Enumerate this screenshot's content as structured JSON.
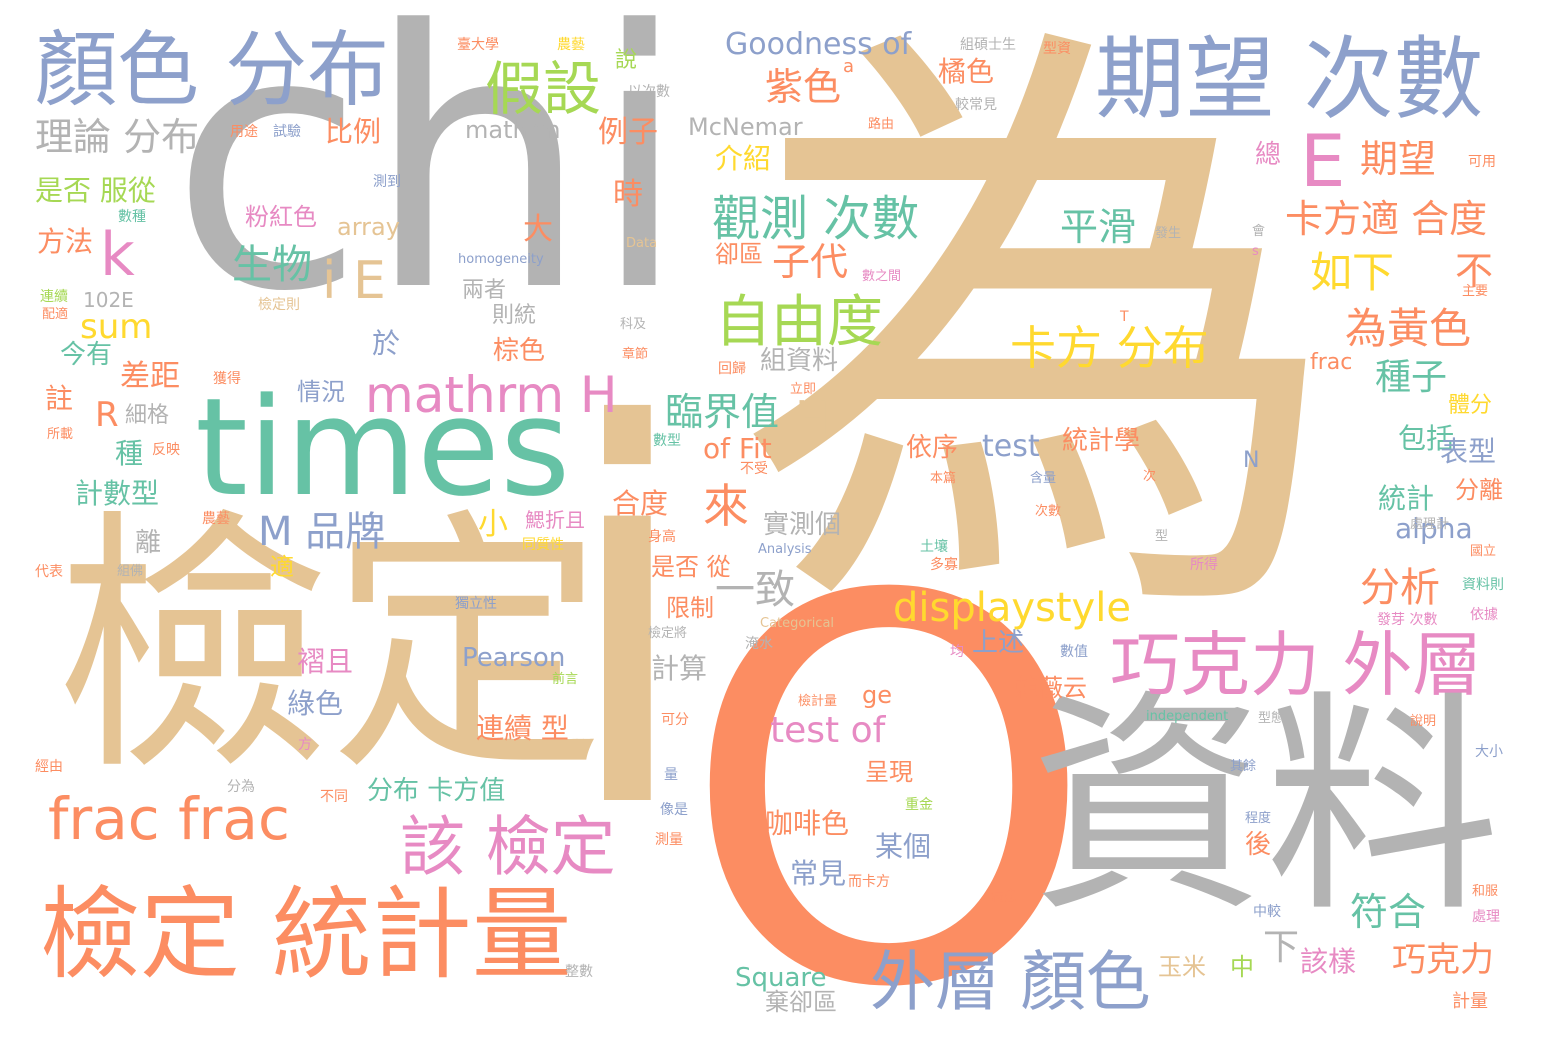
{
  "palette": {
    "gray": "#b3b3b3",
    "tan": "#e5c494",
    "orange": "#fc8d62",
    "green": "#66c2a5",
    "blue": "#8da0cb",
    "pink": "#e78ac3",
    "lime": "#a6d854",
    "yellow": "#ffd92f"
  },
  "words": [
    {
      "text": "chi",
      "color": "gray"
    },
    {
      "text": "為",
      "color": "tan"
    },
    {
      "text": "檢定",
      "color": "tan"
    },
    {
      "text": "i",
      "color": "tan"
    },
    {
      "text": "O",
      "color": "orange"
    },
    {
      "text": "資料",
      "color": "gray"
    },
    {
      "text": "times",
      "color": "green"
    },
    {
      "text": "檢定 統計量",
      "color": "orange"
    },
    {
      "text": "期望 次數",
      "color": "blue"
    },
    {
      "text": "顏色 分布",
      "color": "blue"
    },
    {
      "text": "巧克力 外層",
      "color": "pink"
    },
    {
      "text": "外層 顏色",
      "color": "blue"
    },
    {
      "text": "frac frac",
      "color": "orange"
    },
    {
      "text": "該 檢定",
      "color": "pink"
    },
    {
      "text": "假設",
      "color": "lime"
    },
    {
      "text": "E",
      "color": "pink"
    },
    {
      "text": "自由度",
      "color": "lime"
    },
    {
      "text": "觀測 次數",
      "color": "green"
    },
    {
      "text": "卡方 分布",
      "color": "yellow"
    },
    {
      "text": "mathrm H",
      "color": "pink"
    },
    {
      "text": "displaystyle",
      "color": "yellow"
    },
    {
      "text": "Goodness of",
      "color": "blue"
    },
    {
      "text": "test of",
      "color": "pink"
    },
    {
      "text": "k",
      "color": "pink"
    },
    {
      "text": "i E",
      "color": "tan"
    },
    {
      "text": "H",
      "color": "tan"
    },
    {
      "text": "為黃色",
      "color": "orange"
    },
    {
      "text": "如下",
      "color": "yellow"
    },
    {
      "text": "卡方適 合度",
      "color": "orange"
    },
    {
      "text": "期望",
      "color": "orange"
    },
    {
      "text": "紫色",
      "color": "orange"
    },
    {
      "text": "M 品牌",
      "color": "blue"
    },
    {
      "text": "生物",
      "color": "green"
    },
    {
      "text": "理論 分布",
      "color": "gray"
    },
    {
      "text": "平滑",
      "color": "green"
    },
    {
      "text": "來",
      "color": "orange"
    },
    {
      "text": "臨界值",
      "color": "green"
    },
    {
      "text": "分析",
      "color": "orange"
    },
    {
      "text": "巧克力",
      "color": "orange"
    },
    {
      "text": "符合",
      "color": "green"
    },
    {
      "text": "一致",
      "color": "gray"
    },
    {
      "text": "子代",
      "color": "orange"
    },
    {
      "text": "種子",
      "color": "green"
    },
    {
      "text": "Pearson",
      "color": "blue"
    },
    {
      "text": "McNemar",
      "color": "gray"
    },
    {
      "text": "mathrm",
      "color": "gray"
    },
    {
      "text": "sum",
      "color": "yellow"
    },
    {
      "text": "R",
      "color": "orange"
    },
    {
      "text": "test",
      "color": "blue"
    },
    {
      "text": "of Fit",
      "color": "orange"
    },
    {
      "text": "alpha",
      "color": "blue"
    },
    {
      "text": "咖啡色",
      "color": "orange"
    },
    {
      "text": "Square",
      "color": "green"
    },
    {
      "text": "是否 服從",
      "color": "lime"
    },
    {
      "text": "計數型",
      "color": "green"
    },
    {
      "text": "差距",
      "color": "orange"
    },
    {
      "text": "連續 型",
      "color": "orange"
    },
    {
      "text": "分布 卡方值",
      "color": "green"
    },
    {
      "text": "例子",
      "color": "orange"
    },
    {
      "text": "介紹",
      "color": "yellow"
    },
    {
      "text": "橘色",
      "color": "orange"
    },
    {
      "text": "比例",
      "color": "orange"
    },
    {
      "text": "方法",
      "color": "orange"
    },
    {
      "text": "array",
      "color": "tan"
    },
    {
      "text": "粉紅色",
      "color": "pink"
    },
    {
      "text": "大",
      "color": "orange"
    },
    {
      "text": "時",
      "color": "orange"
    },
    {
      "text": "組資料",
      "color": "gray"
    },
    {
      "text": "卻區",
      "color": "orange"
    },
    {
      "text": "統計學",
      "color": "orange"
    },
    {
      "text": "依序",
      "color": "orange"
    },
    {
      "text": "包括",
      "color": "green"
    },
    {
      "text": "表型",
      "color": "blue"
    },
    {
      "text": "統計",
      "color": "green"
    },
    {
      "text": "分離",
      "color": "orange"
    },
    {
      "text": "上述",
      "color": "blue"
    },
    {
      "text": "賴薇云",
      "color": "orange"
    },
    {
      "text": "呈現",
      "color": "orange"
    },
    {
      "text": "某個",
      "color": "blue"
    },
    {
      "text": "常見",
      "color": "blue"
    },
    {
      "text": "實測個",
      "color": "gray"
    },
    {
      "text": "是否 從",
      "color": "orange"
    },
    {
      "text": "限制",
      "color": "orange"
    },
    {
      "text": "計算",
      "color": "gray"
    },
    {
      "text": "合度",
      "color": "orange"
    },
    {
      "text": "棕色",
      "color": "orange"
    },
    {
      "text": "於",
      "color": "blue"
    },
    {
      "text": "今有",
      "color": "green"
    },
    {
      "text": "情況",
      "color": "blue"
    },
    {
      "text": "註",
      "color": "orange"
    },
    {
      "text": "種",
      "color": "green"
    },
    {
      "text": "離",
      "color": "gray"
    },
    {
      "text": "適",
      "color": "yellow"
    },
    {
      "text": "綠色",
      "color": "blue"
    },
    {
      "text": "褶且",
      "color": "pink"
    },
    {
      "text": "玉米",
      "color": "tan"
    },
    {
      "text": "中",
      "color": "lime"
    },
    {
      "text": "該樣",
      "color": "pink"
    },
    {
      "text": "棄卻區",
      "color": "gray"
    },
    {
      "text": "ge",
      "color": "orange"
    },
    {
      "text": "N",
      "color": "blue"
    },
    {
      "text": "frac",
      "color": "orange"
    },
    {
      "text": "總",
      "color": "pink"
    },
    {
      "text": "體分",
      "color": "yellow"
    },
    {
      "text": "不",
      "color": "orange"
    },
    {
      "text": "下",
      "color": "gray"
    },
    {
      "text": "後",
      "color": "orange"
    },
    {
      "text": "102E",
      "color": "gray"
    },
    {
      "text": "兩者",
      "color": "gray"
    },
    {
      "text": "則統",
      "color": "gray"
    },
    {
      "text": "細格",
      "color": "gray"
    },
    {
      "text": "說",
      "color": "lime"
    },
    {
      "text": "鰓折且",
      "color": "pink"
    },
    {
      "text": "小",
      "color": "yellow"
    },
    {
      "text": "組碩士生",
      "color": "gray"
    },
    {
      "text": "型資",
      "color": "orange"
    },
    {
      "text": "較常見",
      "color": "gray"
    },
    {
      "text": "可用",
      "color": "orange"
    },
    {
      "text": "測到",
      "color": "blue"
    },
    {
      "text": "數種",
      "color": "green"
    },
    {
      "text": "用途",
      "color": "orange"
    },
    {
      "text": "試驗",
      "color": "blue"
    },
    {
      "text": "以次數",
      "color": "gray"
    },
    {
      "text": "homogeneity",
      "color": "blue"
    },
    {
      "text": "Data",
      "color": "tan"
    },
    {
      "text": "數之間",
      "color": "pink"
    },
    {
      "text": "連續",
      "color": "lime"
    },
    {
      "text": "配適",
      "color": "orange"
    },
    {
      "text": "檢定則",
      "color": "tan"
    },
    {
      "text": "獲得",
      "color": "orange"
    },
    {
      "text": "所載",
      "color": "orange"
    },
    {
      "text": "反映",
      "color": "orange"
    },
    {
      "text": "回歸",
      "color": "orange"
    },
    {
      "text": "獨立性",
      "color": "blue"
    },
    {
      "text": "Analysis",
      "color": "blue"
    },
    {
      "text": "Categorical",
      "color": "tan"
    },
    {
      "text": "independent",
      "color": "green"
    },
    {
      "text": "身高",
      "color": "orange"
    },
    {
      "text": "同質性",
      "color": "yellow"
    },
    {
      "text": "不受",
      "color": "orange"
    },
    {
      "text": "本篇",
      "color": "orange"
    },
    {
      "text": "含量",
      "color": "blue"
    },
    {
      "text": "次數",
      "color": "orange"
    },
    {
      "text": "土壤",
      "color": "green"
    },
    {
      "text": "多寡",
      "color": "orange"
    },
    {
      "text": "所得",
      "color": "pink"
    },
    {
      "text": "國立",
      "color": "orange"
    },
    {
      "text": "資料則",
      "color": "green"
    },
    {
      "text": "依據",
      "color": "pink"
    },
    {
      "text": "發芽 次數",
      "color": "pink"
    },
    {
      "text": "數值",
      "color": "blue"
    },
    {
      "text": "而卡方",
      "color": "orange"
    },
    {
      "text": "病患",
      "color": "orange"
    },
    {
      "text": "中較",
      "color": "blue"
    },
    {
      "text": "處理",
      "color": "pink"
    },
    {
      "text": "和服",
      "color": "orange"
    },
    {
      "text": "計量",
      "color": "orange"
    },
    {
      "text": "整數",
      "color": "gray"
    },
    {
      "text": "經由",
      "color": "orange"
    },
    {
      "text": "分為",
      "color": "gray"
    },
    {
      "text": "不同",
      "color": "orange"
    },
    {
      "text": "方",
      "color": "pink"
    },
    {
      "text": "代表",
      "color": "orange"
    },
    {
      "text": "組佛",
      "color": "gray"
    },
    {
      "text": "農藝",
      "color": "orange"
    },
    {
      "text": "數型",
      "color": "green"
    },
    {
      "text": "前言",
      "color": "lime"
    },
    {
      "text": "可分",
      "color": "orange"
    },
    {
      "text": "像是",
      "color": "blue"
    },
    {
      "text": "重金",
      "color": "lime"
    },
    {
      "text": "測量",
      "color": "orange"
    },
    {
      "text": "量",
      "color": "blue"
    },
    {
      "text": "科及",
      "color": "gray"
    },
    {
      "text": "章節",
      "color": "orange"
    },
    {
      "text": "淹水",
      "color": "gray"
    },
    {
      "text": "檢定將",
      "color": "gray"
    },
    {
      "text": "型態",
      "color": "gray"
    },
    {
      "text": "程度",
      "color": "blue"
    },
    {
      "text": "其餘",
      "color": "blue"
    },
    {
      "text": "說明",
      "color": "orange"
    },
    {
      "text": "大小",
      "color": "blue"
    },
    {
      "text": "處理計",
      "color": "gray"
    },
    {
      "text": "主要",
      "color": "orange"
    },
    {
      "text": "發生",
      "color": "gray"
    },
    {
      "text": "會",
      "color": "gray"
    },
    {
      "text": "臺大學",
      "color": "orange"
    },
    {
      "text": "農藝",
      "color": "yellow"
    },
    {
      "text": "路由",
      "color": "orange"
    },
    {
      "text": "T",
      "color": "orange"
    },
    {
      "text": "檢計量",
      "color": "orange"
    },
    {
      "text": "均",
      "color": "pink"
    },
    {
      "text": "立即",
      "color": "orange"
    },
    {
      "text": "次",
      "color": "orange"
    },
    {
      "text": "型",
      "color": "gray"
    },
    {
      "text": "s",
      "color": "pink"
    },
    {
      "text": "a",
      "color": "orange"
    }
  ]
}
